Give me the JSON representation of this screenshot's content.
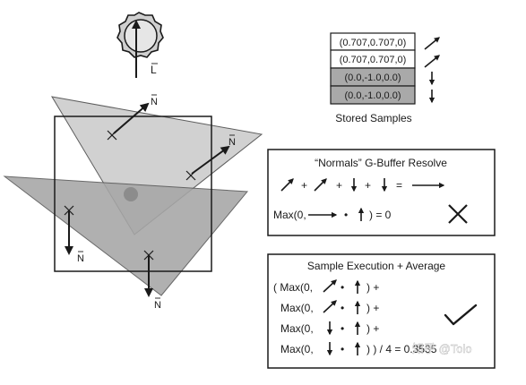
{
  "light": {
    "vector_label": "L"
  },
  "normals": [
    {
      "label": "N"
    },
    {
      "label": "N"
    },
    {
      "label": "N"
    },
    {
      "label": "N"
    }
  ],
  "stored_samples": {
    "rows": [
      {
        "value": "(0.707,0.707,0)",
        "shade": "#ffffff",
        "arrow": "diagonal-up-right"
      },
      {
        "value": "(0.707,0.707,0)",
        "shade": "#ffffff",
        "arrow": "diagonal-up-right"
      },
      {
        "value": "(0.0,-1.0,0.0)",
        "shade": "#a9a9a9",
        "arrow": "down"
      },
      {
        "value": "(0.0,-1.0,0.0)",
        "shade": "#a9a9a9",
        "arrow": "down"
      }
    ],
    "caption": "Stored Samples"
  },
  "gbuffer_resolve": {
    "title": "“Normals” G-Buffer Resolve",
    "plus": "+",
    "equals": "=",
    "formula_prefix": "Max(0,",
    "dot": "•",
    "formula_suffix": ") = 0",
    "result_icon": "cross-icon"
  },
  "sample_execution": {
    "title": "Sample Execution + Average",
    "lines": [
      {
        "prefix": "( Max(0,",
        "suffix": ") +",
        "arrow": "diagonal-up-right"
      },
      {
        "prefix": "Max(0,",
        "suffix": ") +",
        "arrow": "diagonal-up-right"
      },
      {
        "prefix": "Max(0,",
        "suffix": ") +",
        "arrow": "down"
      },
      {
        "prefix": "Max(0,",
        "suffix": ") ) / 4 = 0.3535",
        "arrow": "down"
      }
    ],
    "dot": "•",
    "result_icon": "check-icon"
  },
  "watermark": "知乎 @Tolo",
  "colors": {
    "light_triangle": "#cfcfcf",
    "dark_triangle": "#a6a6a6",
    "sample_dot": "#8c8c8c",
    "grey_row": "#a9a9a9",
    "ink": "#1a1a1a"
  }
}
